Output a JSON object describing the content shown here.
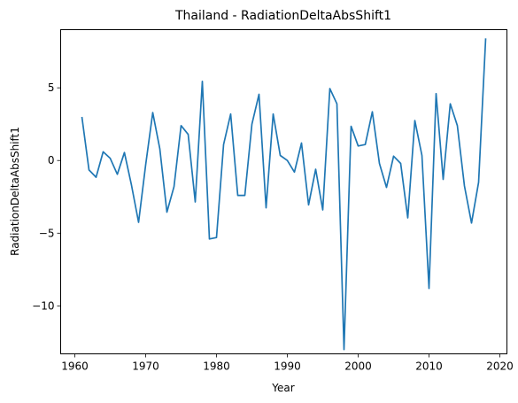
{
  "chart_data": {
    "type": "line",
    "title": "Thailand - RadiationDeltaAbsShift1",
    "xlabel": "Year",
    "ylabel": "RadiationDeltaAbsShift1",
    "xlim": [
      1958,
      2021
    ],
    "ylim": [
      -13.3,
      9.0
    ],
    "xticks": [
      1960,
      1970,
      1980,
      1990,
      2000,
      2010,
      2020
    ],
    "yticks": [
      5,
      0,
      -5,
      -10
    ],
    "ytick_labels": [
      "5",
      "0",
      "−5",
      "−10"
    ],
    "grid": false,
    "series": [
      {
        "color": "#1f77b4",
        "x": [
          1961,
          1962,
          1963,
          1964,
          1965,
          1966,
          1967,
          1968,
          1969,
          1970,
          1971,
          1972,
          1973,
          1974,
          1975,
          1976,
          1977,
          1978,
          1979,
          1980,
          1981,
          1982,
          1983,
          1984,
          1985,
          1986,
          1987,
          1988,
          1989,
          1990,
          1991,
          1992,
          1993,
          1994,
          1995,
          1996,
          1997,
          1998,
          1999,
          2000,
          2001,
          2002,
          2003,
          2004,
          2005,
          2006,
          2007,
          2008,
          2009,
          2010,
          2011,
          2012,
          2013,
          2014,
          2015,
          2016,
          2017,
          2018
        ],
        "y": [
          3.0,
          -0.65,
          -1.15,
          0.6,
          0.15,
          -0.95,
          0.55,
          -1.7,
          -4.25,
          -0.3,
          3.3,
          0.8,
          -3.55,
          -1.8,
          2.4,
          1.8,
          -2.85,
          5.45,
          -5.4,
          -5.3,
          1.1,
          3.2,
          -2.4,
          -2.4,
          2.5,
          4.55,
          -3.25,
          3.2,
          0.35,
          0.0,
          -0.8,
          1.2,
          -3.05,
          -0.6,
          -3.4,
          4.95,
          3.9,
          -13.0,
          2.35,
          1.0,
          1.1,
          3.35,
          -0.2,
          -1.85,
          0.3,
          -0.2,
          -3.95,
          2.75,
          0.35,
          -8.8,
          4.6,
          -1.3,
          3.9,
          2.4,
          -1.75,
          -4.3,
          -1.5,
          8.4
        ]
      }
    ]
  }
}
